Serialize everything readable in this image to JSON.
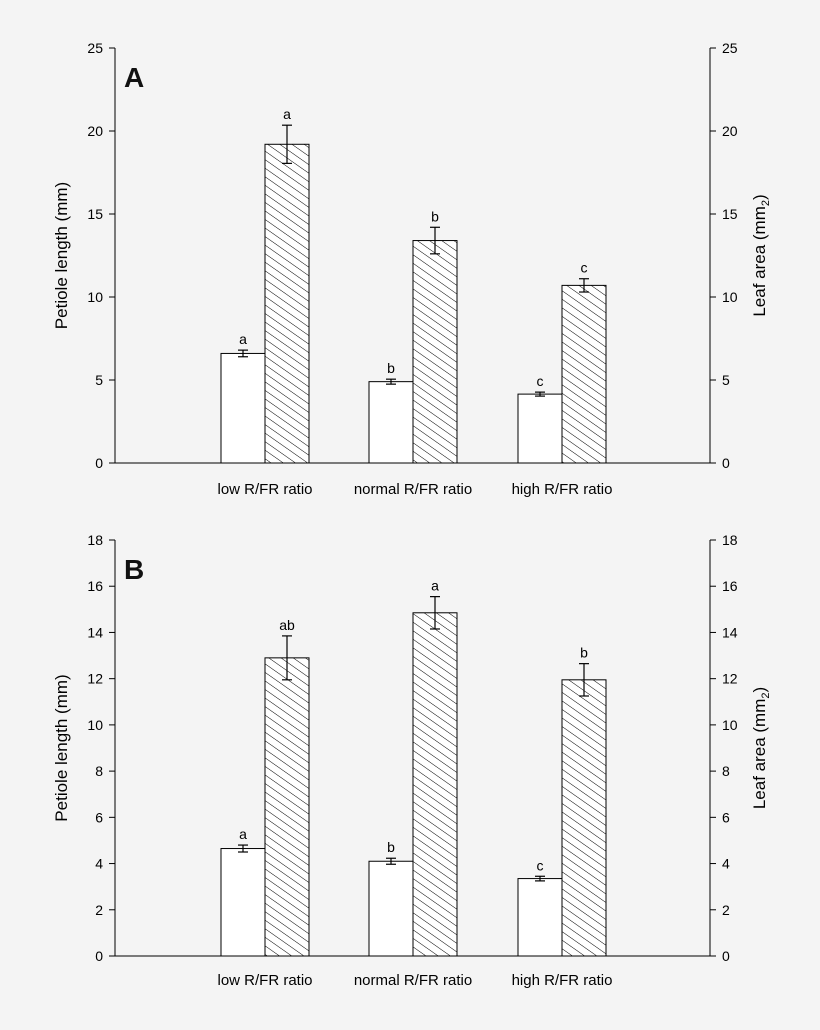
{
  "chart_data": [
    {
      "type": "bar",
      "panel_label": "A",
      "categories": [
        "low R/FR ratio",
        "normal R/FR ratio",
        "high R/FR ratio"
      ],
      "ylabel_left": "Petiole length (mm)",
      "ylabel_right": "Leaf area (mm",
      "ylabel_right_sub": "2",
      "ylabel_right_close": ")",
      "ylim_left": [
        0,
        25
      ],
      "ylim_right": [
        0,
        25
      ],
      "yticks_left": [
        0,
        5,
        10,
        15,
        20,
        25
      ],
      "yticks_right": [
        0,
        5,
        10,
        15,
        20,
        25
      ],
      "grid": false,
      "series": [
        {
          "fill": "white",
          "axis": "left",
          "values": [
            6.6,
            4.9,
            4.15
          ],
          "errors": [
            0.2,
            0.15,
            0.12
          ],
          "sig_labels": [
            "a",
            "b",
            "c"
          ]
        },
        {
          "fill": "hatched",
          "axis": "right",
          "values": [
            19.2,
            13.4,
            10.7
          ],
          "errors": [
            1.15,
            0.8,
            0.4
          ],
          "sig_labels": [
            "a",
            "b",
            "c"
          ]
        }
      ]
    },
    {
      "type": "bar",
      "panel_label": "B",
      "categories": [
        "low R/FR ratio",
        "normal R/FR ratio",
        "high R/FR ratio"
      ],
      "ylabel_left": "Petiole length (mm)",
      "ylabel_right": "Leaf area (mm",
      "ylabel_right_sub": "2",
      "ylabel_right_close": ")",
      "ylim_left": [
        0,
        18
      ],
      "ylim_right": [
        0,
        18
      ],
      "yticks_left": [
        0,
        2,
        4,
        6,
        8,
        10,
        12,
        14,
        16,
        18
      ],
      "yticks_right": [
        0,
        2,
        4,
        6,
        8,
        10,
        12,
        14,
        16,
        18
      ],
      "grid": false,
      "series": [
        {
          "fill": "white",
          "axis": "left",
          "values": [
            4.65,
            4.1,
            3.35
          ],
          "errors": [
            0.15,
            0.13,
            0.1
          ],
          "sig_labels": [
            "a",
            "b",
            "c"
          ]
        },
        {
          "fill": "hatched",
          "axis": "right",
          "values": [
            12.9,
            14.85,
            11.95
          ],
          "errors": [
            0.95,
            0.7,
            0.7
          ],
          "sig_labels": [
            "ab",
            "a",
            "b"
          ]
        }
      ]
    }
  ]
}
